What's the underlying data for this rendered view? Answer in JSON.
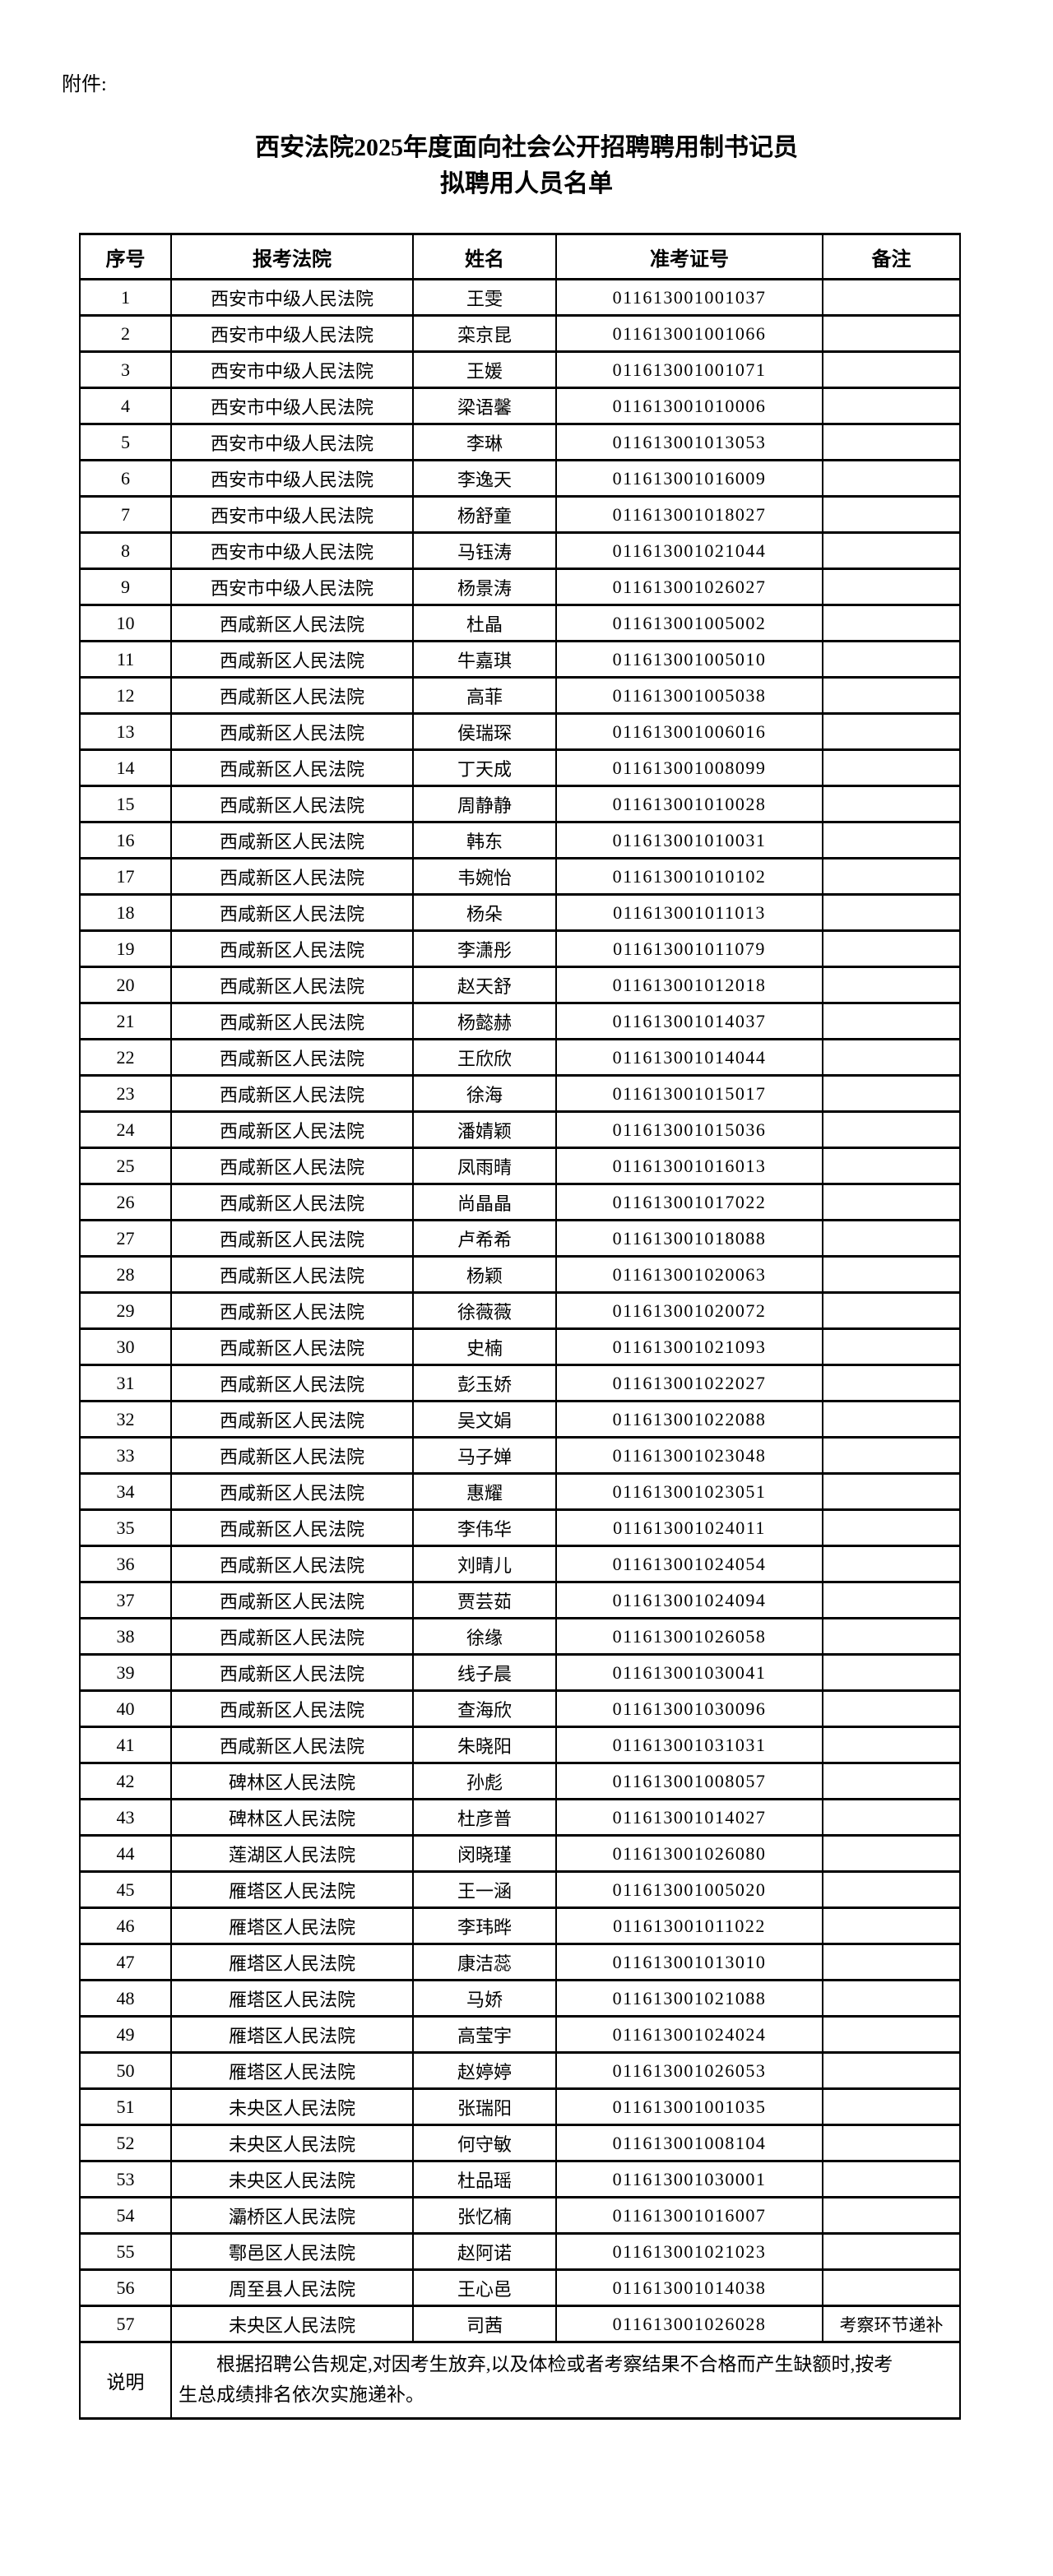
{
  "page": {
    "attachment_label": "附件:",
    "title_line1": "西安法院2025年度面向社会公开招聘聘用制书记员",
    "title_line2": "拟聘用人员名单"
  },
  "table": {
    "headers": [
      "序号",
      "报考法院",
      "姓名",
      "准考证号",
      "备注"
    ],
    "rows": [
      [
        "1",
        "西安市中级人民法院",
        "王雯",
        "011613001001037",
        ""
      ],
      [
        "2",
        "西安市中级人民法院",
        "栾京昆",
        "011613001001066",
        ""
      ],
      [
        "3",
        "西安市中级人民法院",
        "王媛",
        "011613001001071",
        ""
      ],
      [
        "4",
        "西安市中级人民法院",
        "梁语馨",
        "011613001010006",
        ""
      ],
      [
        "5",
        "西安市中级人民法院",
        "李琳",
        "011613001013053",
        ""
      ],
      [
        "6",
        "西安市中级人民法院",
        "李逸天",
        "011613001016009",
        ""
      ],
      [
        "7",
        "西安市中级人民法院",
        "杨舒童",
        "011613001018027",
        ""
      ],
      [
        "8",
        "西安市中级人民法院",
        "马钰涛",
        "011613001021044",
        ""
      ],
      [
        "9",
        "西安市中级人民法院",
        "杨景涛",
        "011613001026027",
        ""
      ],
      [
        "10",
        "西咸新区人民法院",
        "杜晶",
        "011613001005002",
        ""
      ],
      [
        "11",
        "西咸新区人民法院",
        "牛嘉琪",
        "011613001005010",
        ""
      ],
      [
        "12",
        "西咸新区人民法院",
        "高菲",
        "011613001005038",
        ""
      ],
      [
        "13",
        "西咸新区人民法院",
        "侯瑞琛",
        "011613001006016",
        ""
      ],
      [
        "14",
        "西咸新区人民法院",
        "丁天成",
        "011613001008099",
        ""
      ],
      [
        "15",
        "西咸新区人民法院",
        "周静静",
        "011613001010028",
        ""
      ],
      [
        "16",
        "西咸新区人民法院",
        "韩东",
        "011613001010031",
        ""
      ],
      [
        "17",
        "西咸新区人民法院",
        "韦婉怡",
        "011613001010102",
        ""
      ],
      [
        "18",
        "西咸新区人民法院",
        "杨朵",
        "011613001011013",
        ""
      ],
      [
        "19",
        "西咸新区人民法院",
        "李潇彤",
        "011613001011079",
        ""
      ],
      [
        "20",
        "西咸新区人民法院",
        "赵天舒",
        "011613001012018",
        ""
      ],
      [
        "21",
        "西咸新区人民法院",
        "杨懿赫",
        "011613001014037",
        ""
      ],
      [
        "22",
        "西咸新区人民法院",
        "王欣欣",
        "011613001014044",
        ""
      ],
      [
        "23",
        "西咸新区人民法院",
        "徐海",
        "011613001015017",
        ""
      ],
      [
        "24",
        "西咸新区人民法院",
        "潘婧颖",
        "011613001015036",
        ""
      ],
      [
        "25",
        "西咸新区人民法院",
        "凤雨晴",
        "011613001016013",
        ""
      ],
      [
        "26",
        "西咸新区人民法院",
        "尚晶晶",
        "011613001017022",
        ""
      ],
      [
        "27",
        "西咸新区人民法院",
        "卢希希",
        "011613001018088",
        ""
      ],
      [
        "28",
        "西咸新区人民法院",
        "杨颖",
        "011613001020063",
        ""
      ],
      [
        "29",
        "西咸新区人民法院",
        "徐薇薇",
        "011613001020072",
        ""
      ],
      [
        "30",
        "西咸新区人民法院",
        "史楠",
        "011613001021093",
        ""
      ],
      [
        "31",
        "西咸新区人民法院",
        "彭玉娇",
        "011613001022027",
        ""
      ],
      [
        "32",
        "西咸新区人民法院",
        "吴文娟",
        "011613001022088",
        ""
      ],
      [
        "33",
        "西咸新区人民法院",
        "马子婵",
        "011613001023048",
        ""
      ],
      [
        "34",
        "西咸新区人民法院",
        "惠耀",
        "011613001023051",
        ""
      ],
      [
        "35",
        "西咸新区人民法院",
        "李伟华",
        "011613001024011",
        ""
      ],
      [
        "36",
        "西咸新区人民法院",
        "刘晴儿",
        "011613001024054",
        ""
      ],
      [
        "37",
        "西咸新区人民法院",
        "贾芸茹",
        "011613001024094",
        ""
      ],
      [
        "38",
        "西咸新区人民法院",
        "徐缘",
        "011613001026058",
        ""
      ],
      [
        "39",
        "西咸新区人民法院",
        "线子晨",
        "011613001030041",
        ""
      ],
      [
        "40",
        "西咸新区人民法院",
        "查海欣",
        "011613001030096",
        ""
      ],
      [
        "41",
        "西咸新区人民法院",
        "朱晓阳",
        "011613001031031",
        ""
      ],
      [
        "42",
        "碑林区人民法院",
        "孙彪",
        "011613001008057",
        ""
      ],
      [
        "43",
        "碑林区人民法院",
        "杜彦普",
        "011613001014027",
        ""
      ],
      [
        "44",
        "莲湖区人民法院",
        "闵晓瑾",
        "011613001026080",
        ""
      ],
      [
        "45",
        "雁塔区人民法院",
        "王一涵",
        "011613001005020",
        ""
      ],
      [
        "46",
        "雁塔区人民法院",
        "李玮晔",
        "011613001011022",
        ""
      ],
      [
        "47",
        "雁塔区人民法院",
        "康洁蕊",
        "011613001013010",
        ""
      ],
      [
        "48",
        "雁塔区人民法院",
        "马娇",
        "011613001021088",
        ""
      ],
      [
        "49",
        "雁塔区人民法院",
        "高莹宇",
        "011613001024024",
        ""
      ],
      [
        "50",
        "雁塔区人民法院",
        "赵婷婷",
        "011613001026053",
        ""
      ],
      [
        "51",
        "未央区人民法院",
        "张瑞阳",
        "011613001001035",
        ""
      ],
      [
        "52",
        "未央区人民法院",
        "何守敏",
        "011613001008104",
        ""
      ],
      [
        "53",
        "未央区人民法院",
        "杜品瑶",
        "011613001030001",
        ""
      ],
      [
        "54",
        "灞桥区人民法院",
        "张忆楠",
        "011613001016007",
        ""
      ],
      [
        "55",
        "鄠邑区人民法院",
        "赵阿诺",
        "011613001021023",
        ""
      ],
      [
        "56",
        "周至县人民法院",
        "王心邑",
        "011613001014038",
        ""
      ],
      [
        "57",
        "未央区人民法院",
        "司茜",
        "011613001026028",
        "考察环节递补"
      ]
    ],
    "note_label": "说明",
    "note_text": "根据招聘公告规定,对因考生放弃,以及体检或者考察结果不合格而产生缺额时,按考生总成绩排名依次实施递补。"
  }
}
